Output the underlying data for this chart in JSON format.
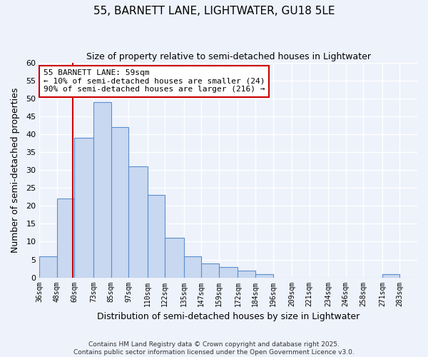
{
  "title": "55, BARNETT LANE, LIGHTWATER, GU18 5LE",
  "subtitle": "Size of property relative to semi-detached houses in Lightwater",
  "xlabel": "Distribution of semi-detached houses by size in Lightwater",
  "ylabel": "Number of semi-detached properties",
  "bin_edges": [
    36,
    48,
    60,
    73,
    85,
    97,
    110,
    122,
    135,
    147,
    159,
    172,
    184,
    196,
    209,
    221,
    234,
    246,
    258,
    271,
    283,
    295
  ],
  "bin_labels": [
    "36sqm",
    "48sqm",
    "60sqm",
    "73sqm",
    "85sqm",
    "97sqm",
    "110sqm",
    "122sqm",
    "135sqm",
    "147sqm",
    "159sqm",
    "172sqm",
    "184sqm",
    "196sqm",
    "209sqm",
    "221sqm",
    "234sqm",
    "246sqm",
    "258sqm",
    "271sqm",
    "283sqm"
  ],
  "counts": [
    6,
    22,
    39,
    49,
    42,
    31,
    23,
    11,
    6,
    4,
    3,
    2,
    1,
    0,
    0,
    0,
    0,
    0,
    0,
    1,
    0
  ],
  "bar_facecolor": "#c8d8f0",
  "bar_edgecolor": "#5b8fcf",
  "property_value": 59,
  "vline_color": "#cc0000",
  "ylim": [
    0,
    60
  ],
  "annotation_line1": "55 BARNETT LANE: 59sqm",
  "annotation_line2": "← 10% of semi-detached houses are smaller (24)",
  "annotation_line3": "90% of semi-detached houses are larger (216) →",
  "annotation_box_color": "#ffffff",
  "annotation_box_edgecolor": "#cc0000",
  "footer_text": "Contains HM Land Registry data © Crown copyright and database right 2025.\nContains public sector information licensed under the Open Government Licence v3.0.",
  "background_color": "#eef2fb",
  "grid_color": "#ffffff"
}
